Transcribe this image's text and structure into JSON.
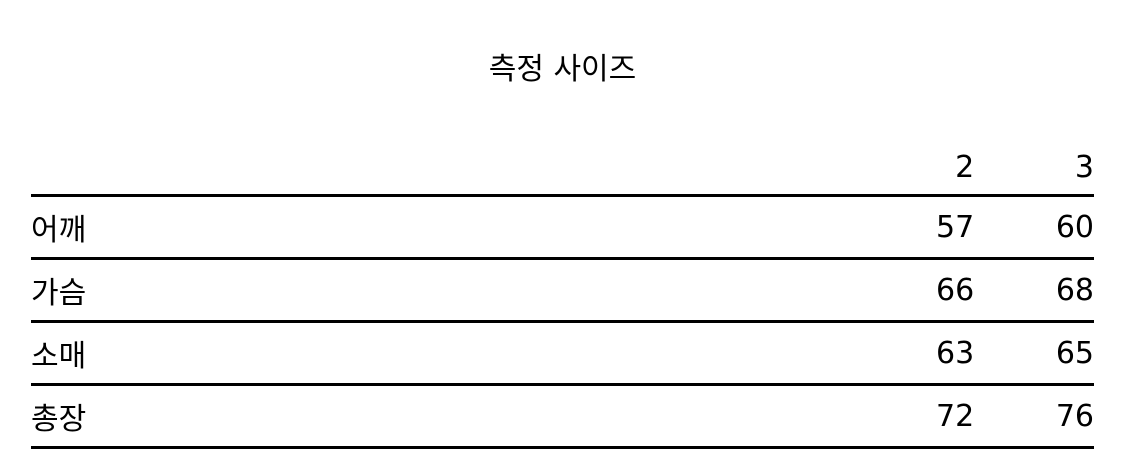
{
  "title": "측정 사이즈",
  "columns": [
    "",
    "2",
    "3"
  ],
  "rows": [
    {
      "label": "어깨",
      "values": [
        "57",
        "60"
      ]
    },
    {
      "label": "가슴",
      "values": [
        "66",
        "68"
      ]
    },
    {
      "label": "소매",
      "values": [
        "63",
        "65"
      ]
    },
    {
      "label": "총장",
      "values": [
        "72",
        "76"
      ]
    }
  ]
}
